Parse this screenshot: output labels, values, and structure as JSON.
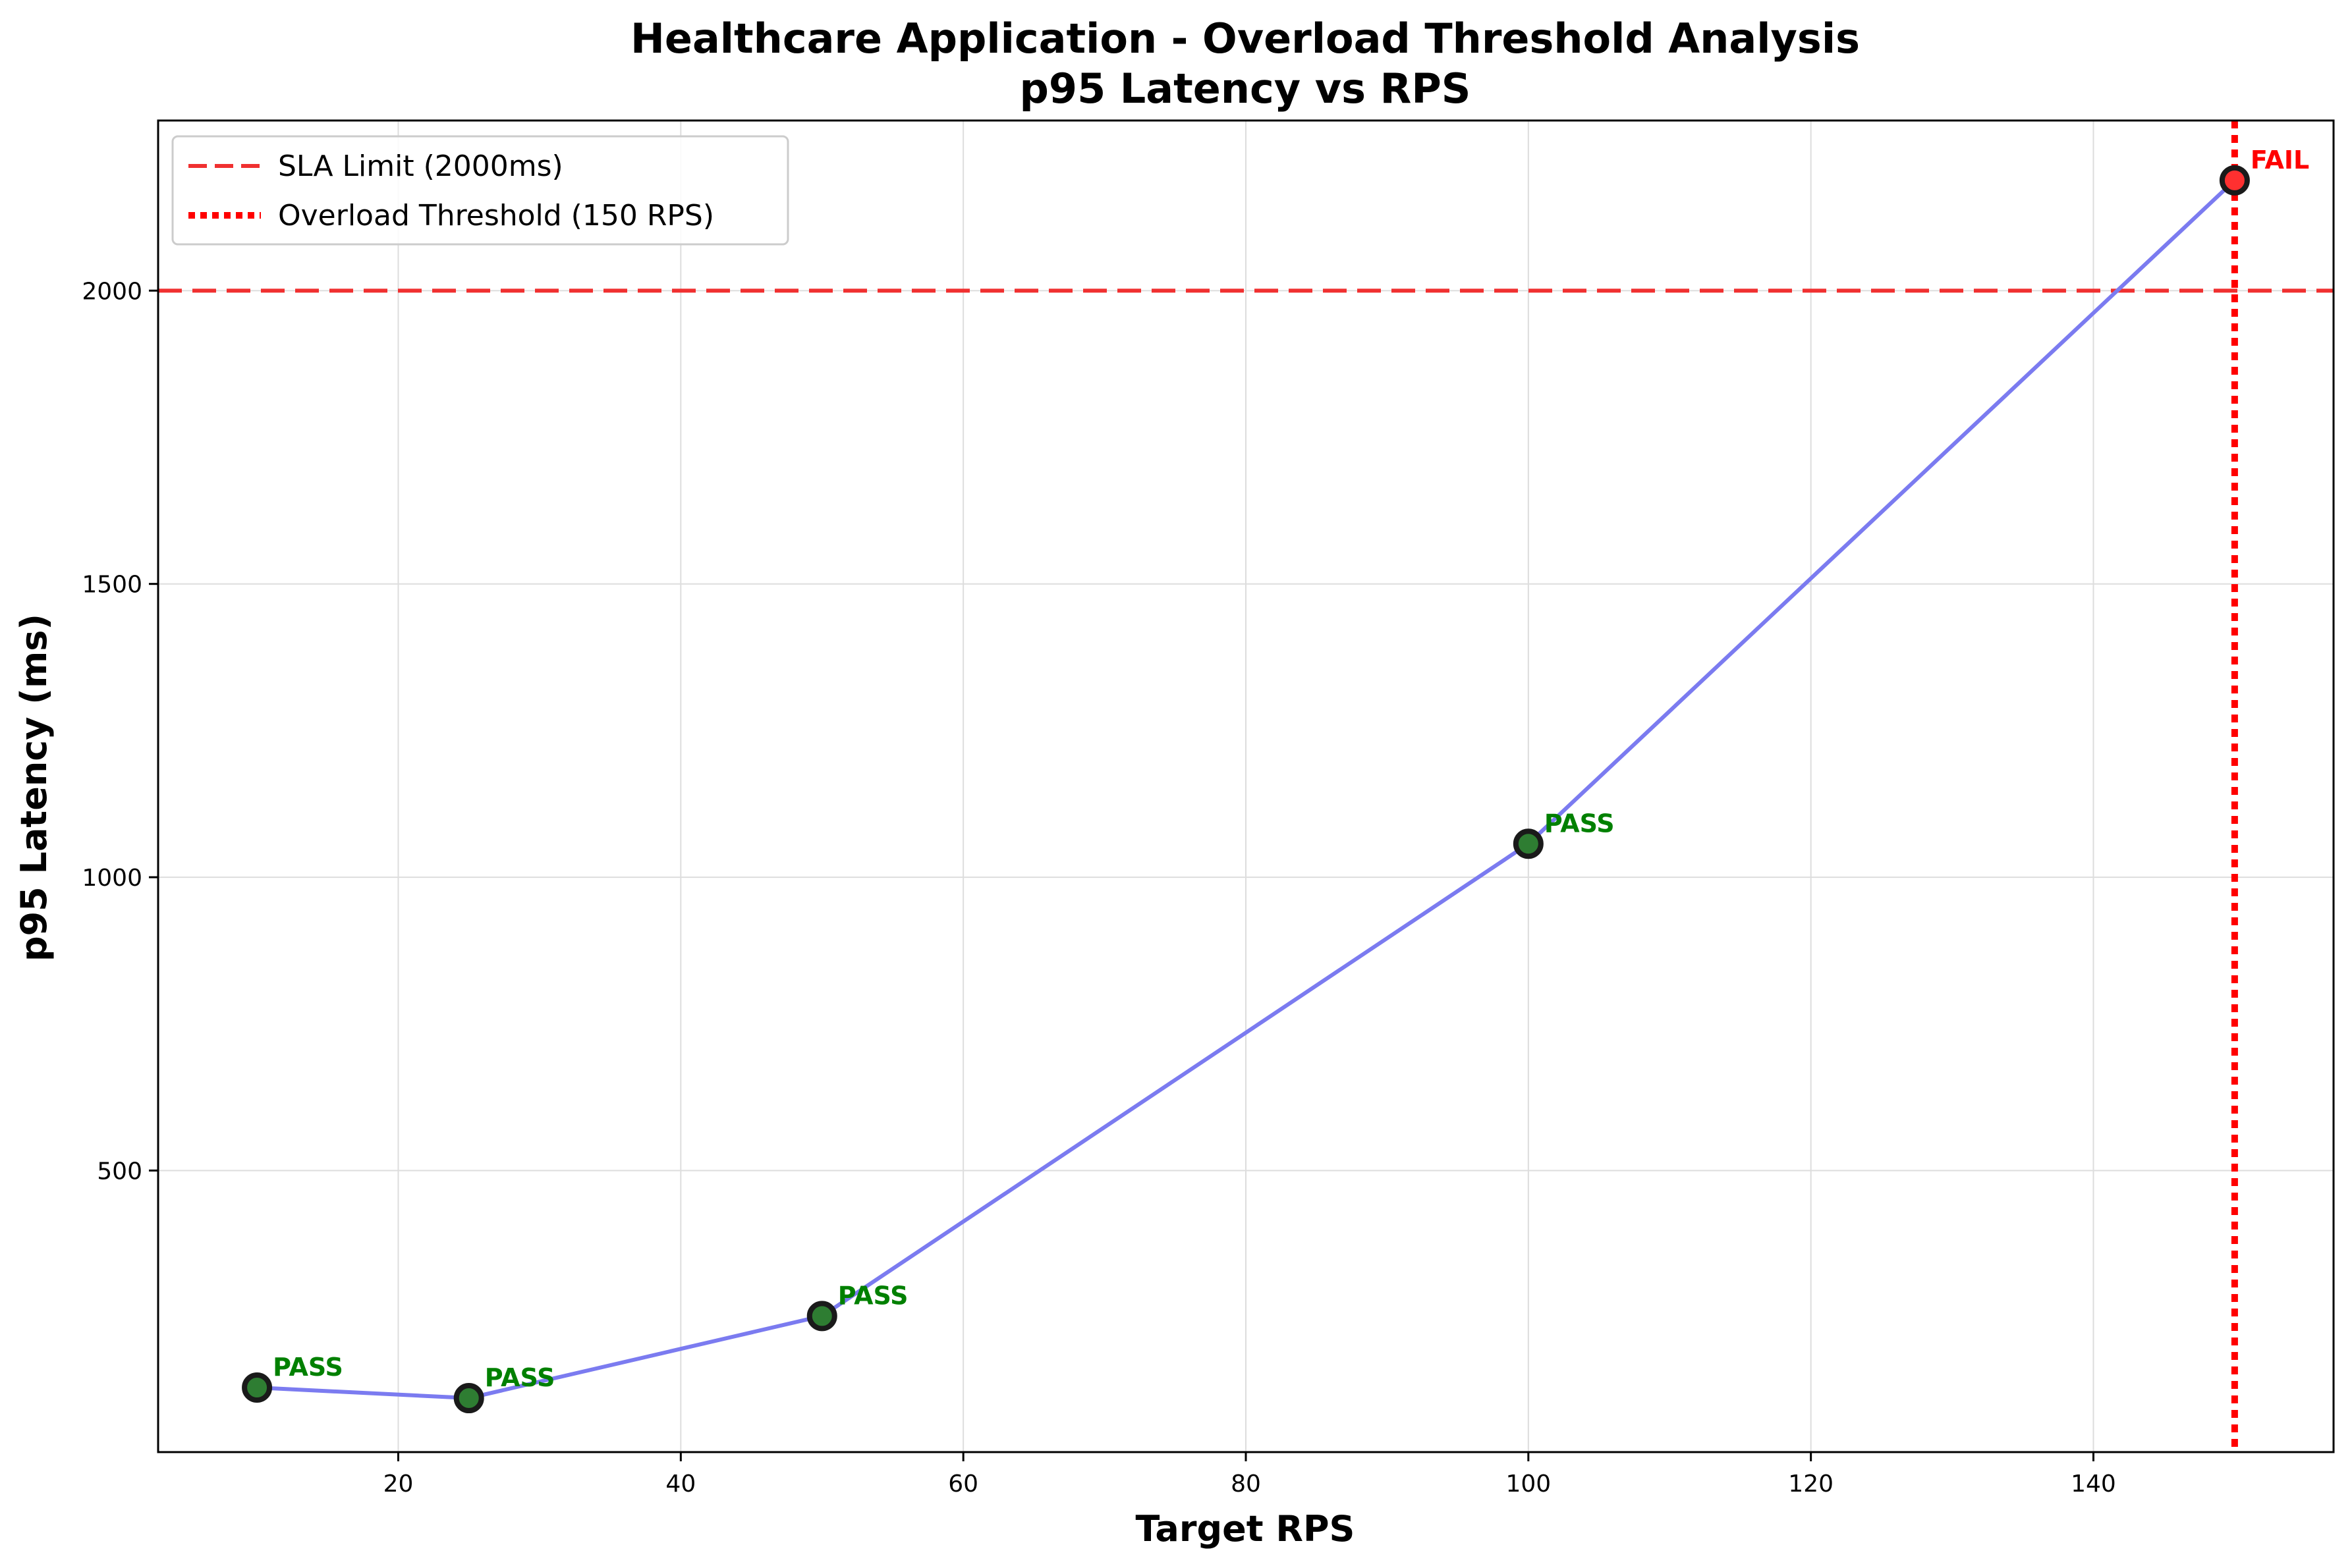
{
  "chart_data": {
    "type": "line",
    "title": "Healthcare Application - Overload Threshold Analysis",
    "subtitle": "p95 Latency vs RPS",
    "xlabel": "Target RPS",
    "ylabel": "p95 Latency (ms)",
    "xlim": [
      3,
      157
    ],
    "ylim": [
      20,
      2290
    ],
    "xticks": [
      20,
      40,
      60,
      80,
      100,
      120,
      140
    ],
    "yticks": [
      500,
      1000,
      1500,
      2000
    ],
    "grid": true,
    "legend_position": "top-left",
    "series": [
      {
        "x": [
          10,
          25,
          50,
          100,
          150
        ],
        "y": [
          130,
          112,
          252,
          1057,
          2188
        ],
        "status": [
          "PASS",
          "PASS",
          "PASS",
          "PASS",
          "FAIL"
        ],
        "line_color": "#7b7bf0"
      }
    ],
    "reference_lines": [
      {
        "name": "SLA Limit (2000ms)",
        "orientation": "horizontal",
        "value": 2000,
        "style": "dashed",
        "color": "#f03030"
      },
      {
        "name": "Overload Threshold (150 RPS)",
        "orientation": "vertical",
        "value": 150,
        "style": "dotted",
        "color": "#ff0000"
      }
    ],
    "status_colors": {
      "PASS": "#008000",
      "FAIL": "#ff0000"
    },
    "marker_fill": {
      "PASS": "#2e7d32",
      "FAIL": "#ff3030"
    }
  }
}
